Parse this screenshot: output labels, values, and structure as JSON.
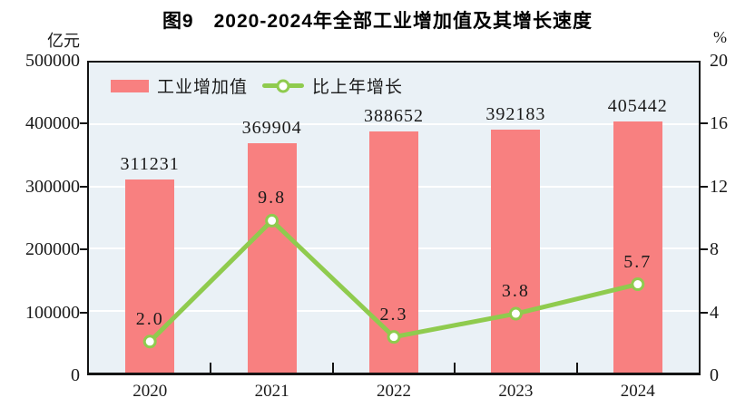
{
  "chart_data": {
    "type": "bar+line",
    "title": "图9　2020-2024年全部工业增加值及其增长速度",
    "categories": [
      "2020",
      "2021",
      "2022",
      "2023",
      "2024"
    ],
    "series": [
      {
        "name": "工业增加值",
        "type": "bar",
        "axis": "left",
        "color": "#F88080",
        "values": [
          311231,
          369904,
          388652,
          392183,
          405442
        ],
        "labels": [
          "311231",
          "369904",
          "388652",
          "392183",
          "405442"
        ]
      },
      {
        "name": "比上年增长",
        "type": "line",
        "axis": "right",
        "color": "#8FCB4E",
        "marker_fill": "#FFFFFF",
        "values": [
          2.0,
          9.8,
          2.3,
          3.8,
          5.7
        ],
        "labels": [
          "2.0",
          "9.8",
          "2.3",
          "3.8",
          "5.7"
        ]
      }
    ],
    "left_axis": {
      "unit": "亿元",
      "min": 0,
      "max": 500000,
      "ticks": [
        0,
        100000,
        200000,
        300000,
        400000,
        500000
      ],
      "tick_labels": [
        "0",
        "100000",
        "200000",
        "300000",
        "400000",
        "500000"
      ]
    },
    "right_axis": {
      "unit": "%",
      "min": 0,
      "max": 20,
      "ticks": [
        0,
        4,
        8,
        12,
        16,
        20
      ],
      "tick_labels": [
        "0",
        "4",
        "8",
        "12",
        "16",
        "20"
      ]
    },
    "grid": "horizontal-white",
    "legend_position": "top-left-inside",
    "plot_bg": "#EAF1F6"
  }
}
